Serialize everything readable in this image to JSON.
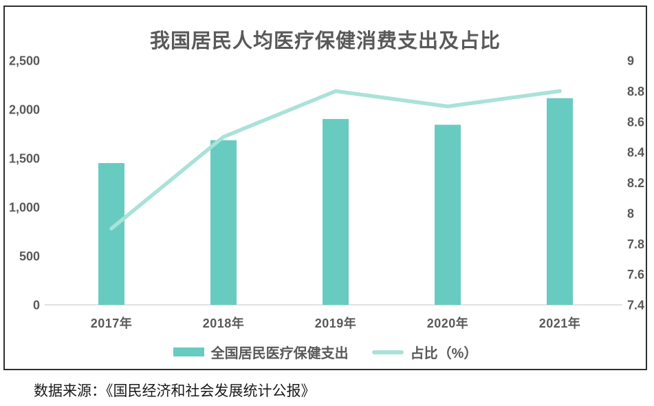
{
  "title": "我国居民人均医疗保健消费支出及占比",
  "source": "数据来源：《国民经济和社会发展统计公报》",
  "legend": {
    "bar_label": "全国居民医疗保健支出",
    "line_label": "占比（%）"
  },
  "colors": {
    "bar": "#68CBC0",
    "line": "#A9E2D8",
    "label_text": "#595959",
    "baseline": "#D9D9D9",
    "frame_border": "#2F2F2F",
    "source_text": "#1A1A1A"
  },
  "chart_data": {
    "type": "bar+line combo",
    "title": "我国居民人均医疗保健消费支出及占比",
    "categories": [
      "2017年",
      "2018年",
      "2019年",
      "2020年",
      "2021年"
    ],
    "series": [
      {
        "name": "全国居民医疗保健支出",
        "type": "bar",
        "axis": "left",
        "values": [
          1451,
          1685,
          1902,
          1843,
          2115
        ]
      },
      {
        "name": "占比（%）",
        "type": "line",
        "axis": "right",
        "values": [
          7.9,
          8.5,
          8.8,
          8.7,
          8.8
        ]
      }
    ],
    "left_axis": {
      "min": 0,
      "max": 2500,
      "step": 500,
      "tick_labels_top_to_bottom": [
        "2,500",
        "2,000",
        "1,500",
        "1,000",
        "500",
        "0"
      ]
    },
    "right_axis": {
      "min": 7.4,
      "max": 9,
      "step": 0.2,
      "tick_labels_top_to_bottom": [
        "9",
        "8.8",
        "8.6",
        "8.4",
        "8.2",
        "8",
        "7.8",
        "7.6",
        "7.4"
      ]
    },
    "grid": false,
    "legend_position": "bottom",
    "xlabel": "",
    "ylabel_left": "",
    "ylabel_right": ""
  }
}
